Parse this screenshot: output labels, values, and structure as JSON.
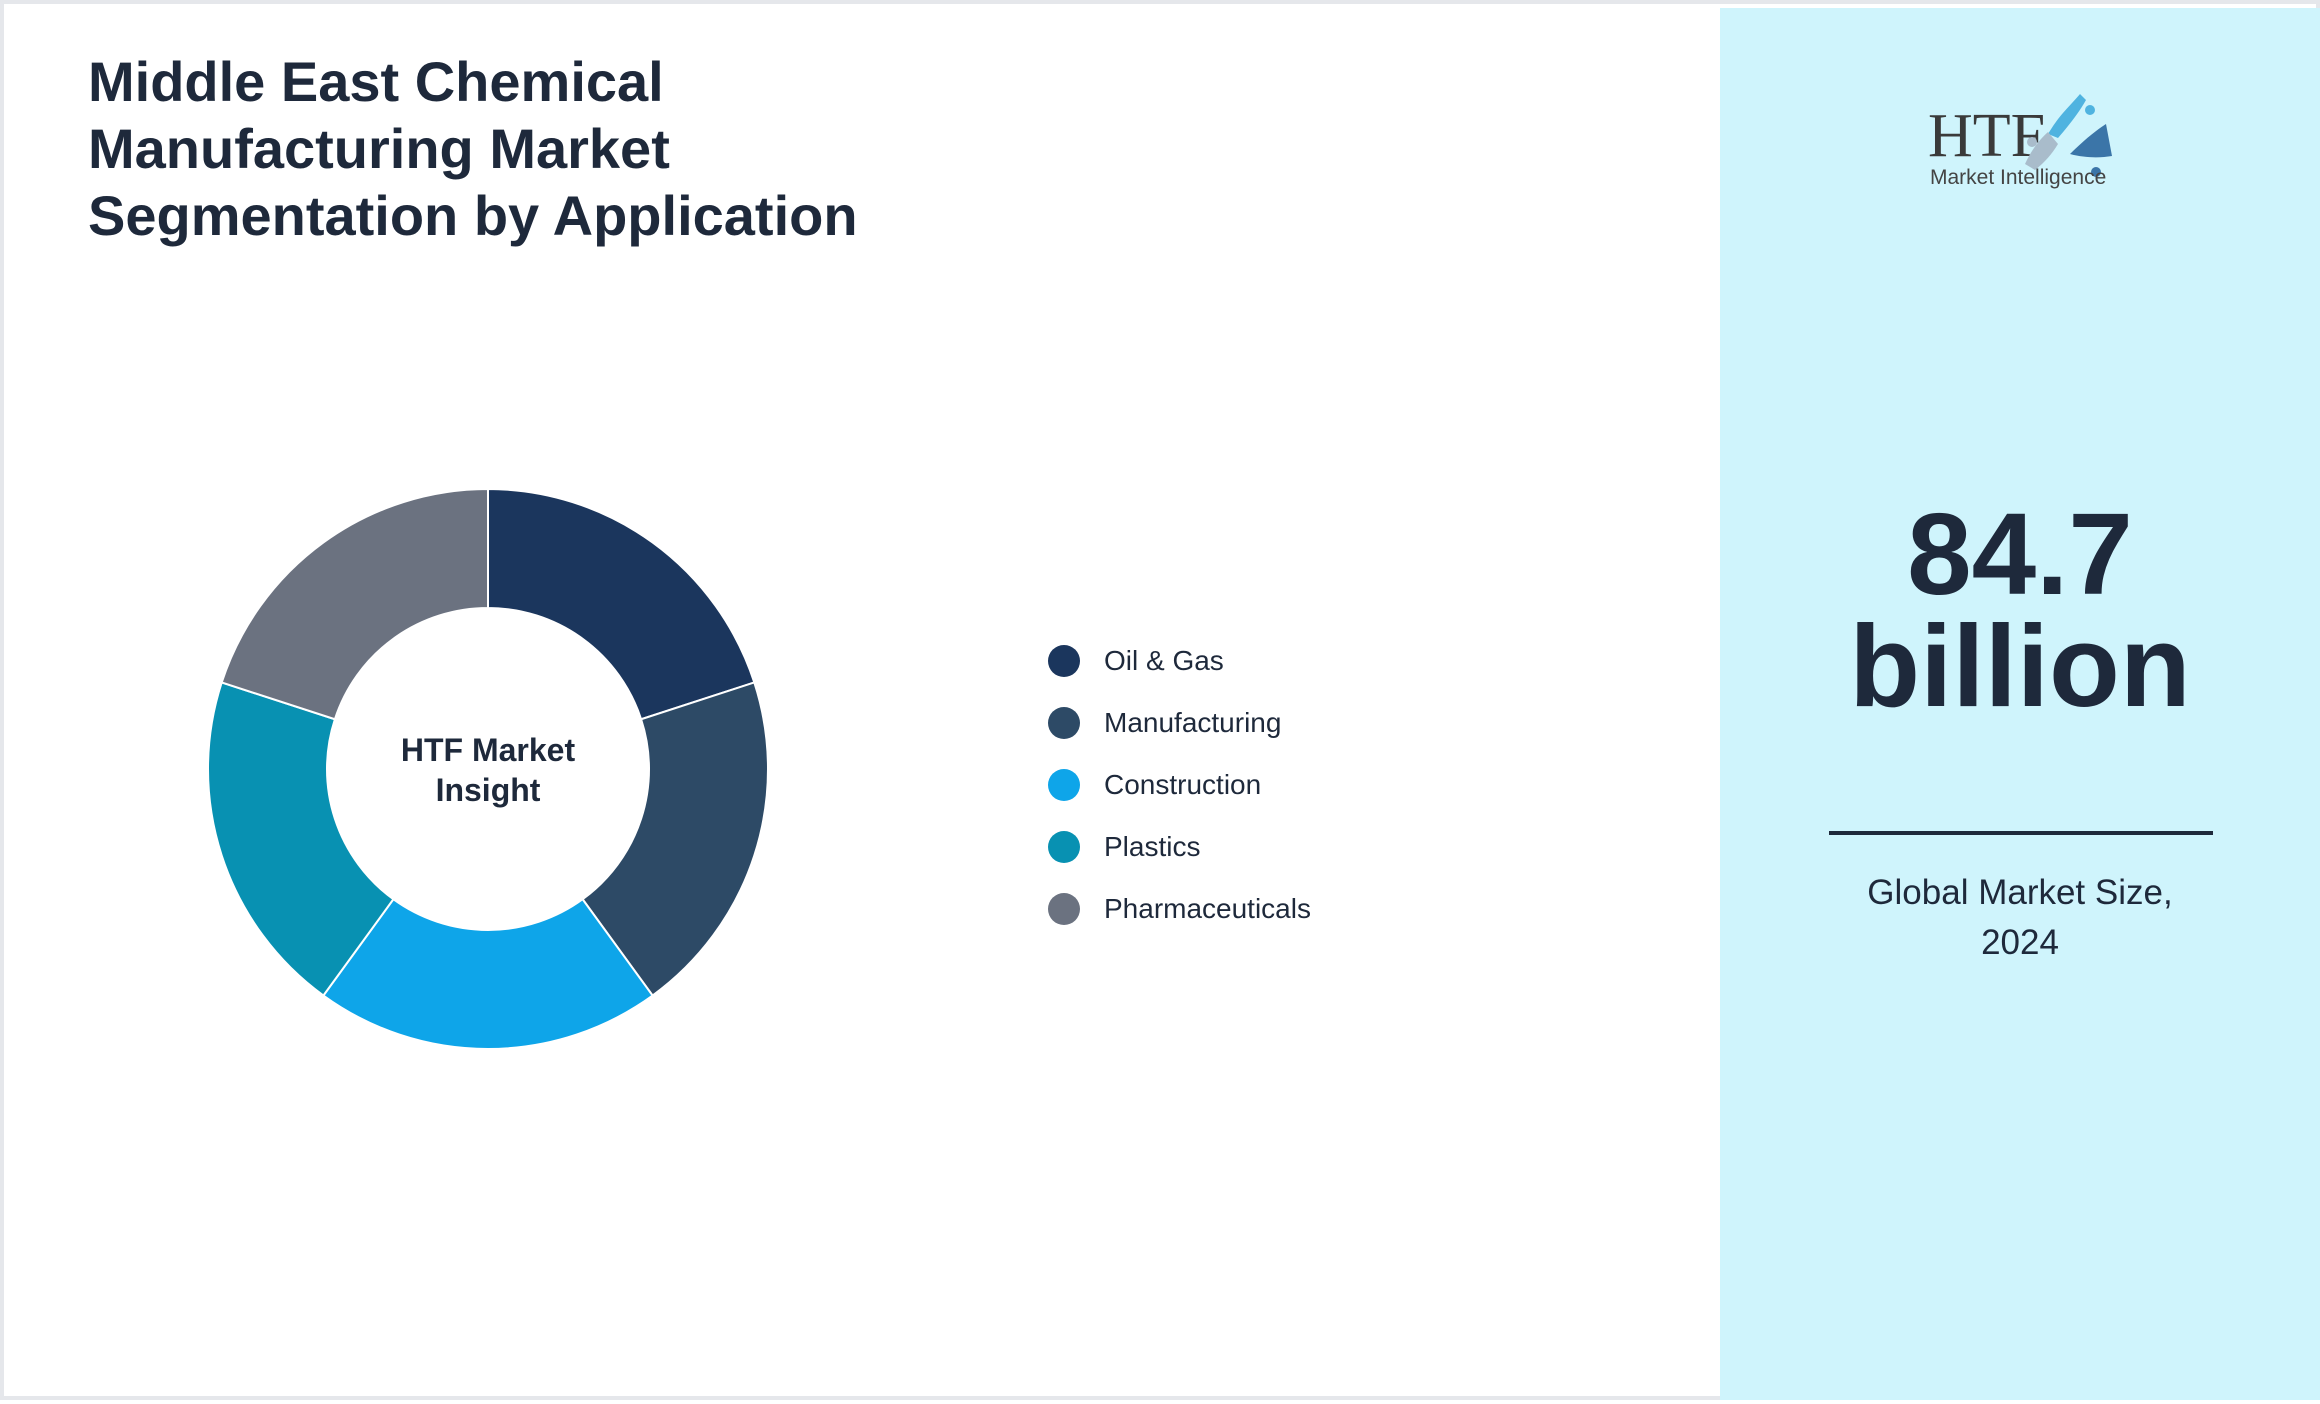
{
  "title": "Middle East Chemical Manufacturing Market Segmentation by Application",
  "chart_data": {
    "type": "pie",
    "title": "Middle East Chemical Manufacturing Market Segmentation by Application",
    "center_label": "HTF Market Insight",
    "categories": [
      "Oil & Gas",
      "Manufacturing",
      "Construction",
      "Plastics",
      "Pharmaceuticals"
    ],
    "values": [
      20,
      20,
      20,
      20,
      20
    ],
    "colors": [
      "#1b365d",
      "#2d4a66",
      "#0ea5e9",
      "#0891b2",
      "#6b7280"
    ],
    "legend": "right"
  },
  "logo": {
    "brand": "HTF",
    "tagline": "Market Intelligence"
  },
  "stat": {
    "value": "84.7",
    "unit": "billion",
    "caption_line1": "Global Market Size,",
    "caption_line2": "2024"
  }
}
